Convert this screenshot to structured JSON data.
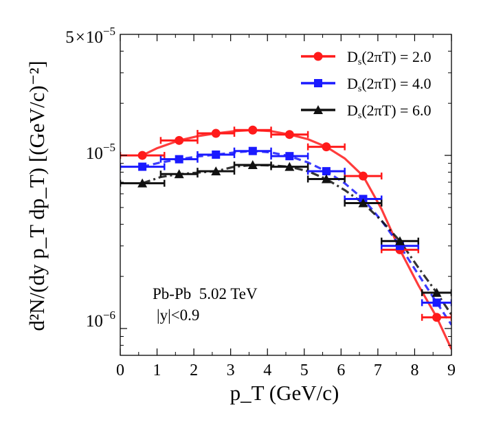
{
  "chart_data": {
    "type": "scatter",
    "title": "",
    "xlabel": "p_T (GeV/c)",
    "ylabel": "d²N/(dy p_T dp_T) [(GeV/c)⁻²]",
    "xlim": [
      0,
      9
    ],
    "ylim": [
      7e-07,
      5e-05
    ],
    "yscale": "log",
    "x_ticks": [
      "0",
      "1",
      "2",
      "3",
      "4",
      "5",
      "6",
      "7",
      "8",
      "9"
    ],
    "y_tick_labels": {
      "top": {
        "mantissa": "5",
        "times": "×",
        "base": "10",
        "exp": "−5"
      },
      "mid": {
        "base": "10",
        "exp": "−5"
      },
      "low": {
        "base": "10",
        "exp": "−6"
      }
    },
    "annotation": {
      "line1": "Pb-Pb  5.02 TeV",
      "line2": "|y|<0.9"
    },
    "legend_position": "top-right",
    "series": [
      {
        "name": "D_s(2πT) = 2.0",
        "legend_main": "D",
        "legend_sub": "s",
        "legend_rest": "(2πT) = 2.0",
        "color": "#ff1a1a",
        "marker": "circle",
        "line": "solid",
        "points": [
          {
            "x": 0.6,
            "y": 1e-05,
            "xerr": 0.6
          },
          {
            "x": 1.6,
            "y": 1.22e-05,
            "xerr": 0.5
          },
          {
            "x": 2.6,
            "y": 1.34e-05,
            "xerr": 0.5
          },
          {
            "x": 3.6,
            "y": 1.4e-05,
            "xerr": 0.5
          },
          {
            "x": 4.6,
            "y": 1.32e-05,
            "xerr": 0.5
          },
          {
            "x": 5.6,
            "y": 1.12e-05,
            "xerr": 0.5
          },
          {
            "x": 6.6,
            "y": 7.6e-06,
            "xerr": 0.5
          },
          {
            "x": 7.6,
            "y": 2.85e-06,
            "xerr": 0.5
          },
          {
            "x": 8.6,
            "y": 1.16e-06,
            "xerr": 0.4
          }
        ],
        "curve": [
          [
            0.6,
            1e-05
          ],
          [
            1.0,
            1.1e-05
          ],
          [
            1.6,
            1.22e-05
          ],
          [
            2.1,
            1.29e-05
          ],
          [
            2.6,
            1.34e-05
          ],
          [
            3.1,
            1.38e-05
          ],
          [
            3.6,
            1.4e-05
          ],
          [
            4.1,
            1.38e-05
          ],
          [
            4.6,
            1.32e-05
          ],
          [
            5.1,
            1.24e-05
          ],
          [
            5.6,
            1.12e-05
          ],
          [
            6.1,
            9.6e-06
          ],
          [
            6.6,
            7.6e-06
          ],
          [
            7.1,
            4.9e-06
          ],
          [
            7.6,
            2.85e-06
          ],
          [
            8.1,
            1.78e-06
          ],
          [
            8.6,
            1.16e-06
          ],
          [
            9.0,
            7.6e-07
          ]
        ]
      },
      {
        "name": "D_s(2πT) = 4.0",
        "legend_main": "D",
        "legend_sub": "s",
        "legend_rest": "(2πT) = 4.0",
        "color": "#1a1aff",
        "marker": "square",
        "line": "dashed",
        "points": [
          {
            "x": 0.6,
            "y": 8.6e-06,
            "xerr": 0.6
          },
          {
            "x": 1.6,
            "y": 9.5e-06,
            "xerr": 0.5
          },
          {
            "x": 2.6,
            "y": 1.01e-05,
            "xerr": 0.5
          },
          {
            "x": 3.6,
            "y": 1.06e-05,
            "xerr": 0.5
          },
          {
            "x": 4.6,
            "y": 9.9e-06,
            "xerr": 0.5
          },
          {
            "x": 5.6,
            "y": 8.1e-06,
            "xerr": 0.5
          },
          {
            "x": 6.6,
            "y": 5.6e-06,
            "xerr": 0.5
          },
          {
            "x": 7.6,
            "y": 3e-06,
            "xerr": 0.5
          },
          {
            "x": 8.6,
            "y": 1.41e-06,
            "xerr": 0.4
          }
        ],
        "curve": [
          [
            0.6,
            8.6e-06
          ],
          [
            1.1,
            9.1e-06
          ],
          [
            1.6,
            9.5e-06
          ],
          [
            2.1,
            9.85e-06
          ],
          [
            2.6,
            1.01e-05
          ],
          [
            3.1,
            1.04e-05
          ],
          [
            3.6,
            1.06e-05
          ],
          [
            4.1,
            1.04e-05
          ],
          [
            4.6,
            9.9e-06
          ],
          [
            5.1,
            9.1e-06
          ],
          [
            5.6,
            8.1e-06
          ],
          [
            6.1,
            6.9e-06
          ],
          [
            6.6,
            5.6e-06
          ],
          [
            7.1,
            4.2e-06
          ],
          [
            7.6,
            3e-06
          ],
          [
            8.1,
            2.05e-06
          ],
          [
            8.6,
            1.41e-06
          ],
          [
            9.0,
            1.05e-06
          ]
        ]
      },
      {
        "name": "D_s(2πT) = 6.0",
        "legend_main": "D",
        "legend_sub": "s",
        "legend_rest": "(2πT) = 6.0",
        "color": "#111111",
        "marker": "triangle",
        "line": "dashdot",
        "points": [
          {
            "x": 0.6,
            "y": 6.9e-06,
            "xerr": 0.6
          },
          {
            "x": 1.6,
            "y": 7.8e-06,
            "xerr": 0.5
          },
          {
            "x": 2.6,
            "y": 8.1e-06,
            "xerr": 0.5
          },
          {
            "x": 3.6,
            "y": 8.8e-06,
            "xerr": 0.5
          },
          {
            "x": 4.6,
            "y": 8.6e-06,
            "xerr": 0.5
          },
          {
            "x": 5.6,
            "y": 7.3e-06,
            "xerr": 0.5
          },
          {
            "x": 6.6,
            "y": 5.3e-06,
            "xerr": 0.5
          },
          {
            "x": 7.6,
            "y": 3.2e-06,
            "xerr": 0.5
          },
          {
            "x": 8.6,
            "y": 1.61e-06,
            "xerr": 0.4
          }
        ],
        "curve": [
          [
            0.6,
            6.9e-06
          ],
          [
            1.1,
            7.5e-06
          ],
          [
            1.6,
            7.8e-06
          ],
          [
            2.1,
            7.95e-06
          ],
          [
            2.6,
            8.1e-06
          ],
          [
            3.1,
            8.6e-06
          ],
          [
            3.6,
            8.8e-06
          ],
          [
            4.1,
            8.75e-06
          ],
          [
            4.6,
            8.6e-06
          ],
          [
            5.1,
            8.1e-06
          ],
          [
            5.6,
            7.3e-06
          ],
          [
            6.1,
            6.3e-06
          ],
          [
            6.6,
            5.3e-06
          ],
          [
            7.1,
            4.2e-06
          ],
          [
            7.6,
            3.2e-06
          ],
          [
            8.1,
            2.25e-06
          ],
          [
            8.6,
            1.61e-06
          ],
          [
            9.0,
            1.2e-06
          ]
        ]
      }
    ]
  }
}
